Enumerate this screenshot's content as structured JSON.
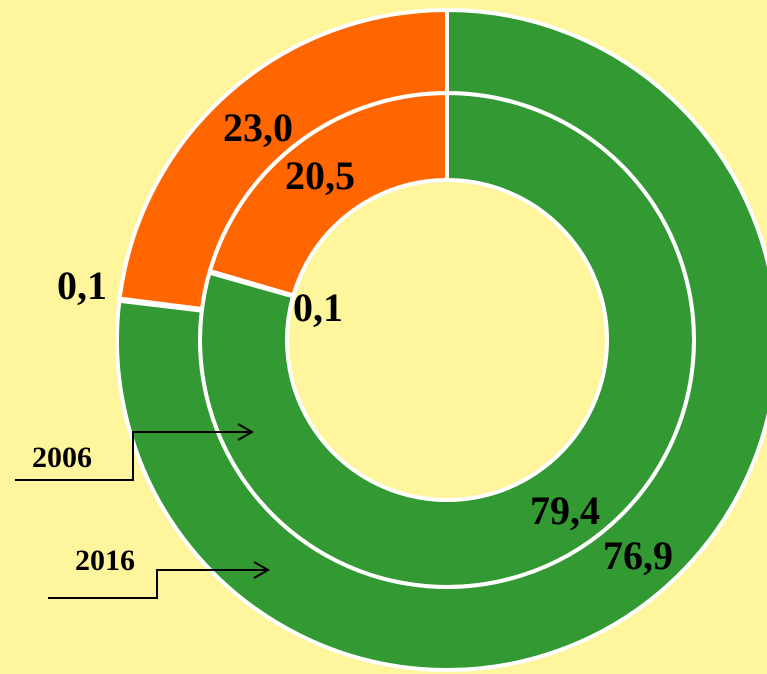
{
  "chart_data": {
    "type": "donut",
    "colors": [
      "#339933",
      "#339933",
      "#ff6600"
    ],
    "series": [
      {
        "name": "2006",
        "values": [
          79.4,
          0.1,
          20.5
        ],
        "value_labels": [
          "79,4",
          "0,1",
          "20,5"
        ]
      },
      {
        "name": "2016",
        "values": [
          76.9,
          0.1,
          23.0
        ],
        "value_labels": [
          "76,9",
          "0,1",
          "23,0"
        ]
      }
    ]
  }
}
